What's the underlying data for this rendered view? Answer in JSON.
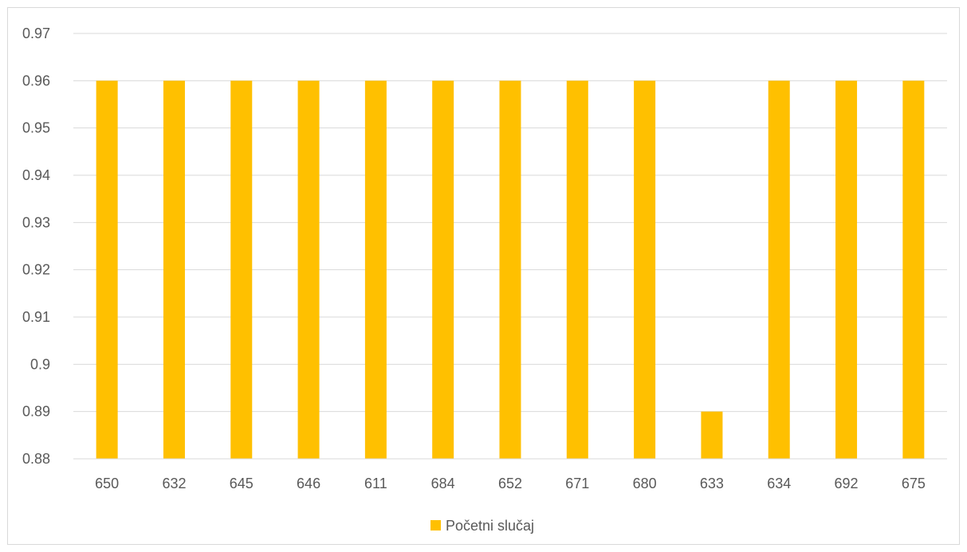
{
  "chart_data": {
    "type": "bar",
    "title": "",
    "xlabel": "",
    "ylabel": "",
    "categories": [
      "650",
      "632",
      "645",
      "646",
      "611",
      "684",
      "652",
      "671",
      "680",
      "633",
      "634",
      "692",
      "675"
    ],
    "series": [
      {
        "name": "Početni slučaj",
        "values": [
          0.96,
          0.96,
          0.96,
          0.96,
          0.96,
          0.96,
          0.96,
          0.96,
          0.96,
          0.89,
          0.96,
          0.96,
          0.96
        ]
      }
    ],
    "ylim": [
      0.88,
      0.97
    ],
    "yticks": [
      "0.88",
      "0.89",
      "0.9",
      "0.91",
      "0.92",
      "0.93",
      "0.94",
      "0.95",
      "0.96",
      "0.97"
    ],
    "grid": true,
    "legend_position": "bottom",
    "colors": {
      "bar": "#ffc000",
      "grid": "#d9d9d9",
      "text": "#595959",
      "border": "#d9d9d9"
    }
  }
}
